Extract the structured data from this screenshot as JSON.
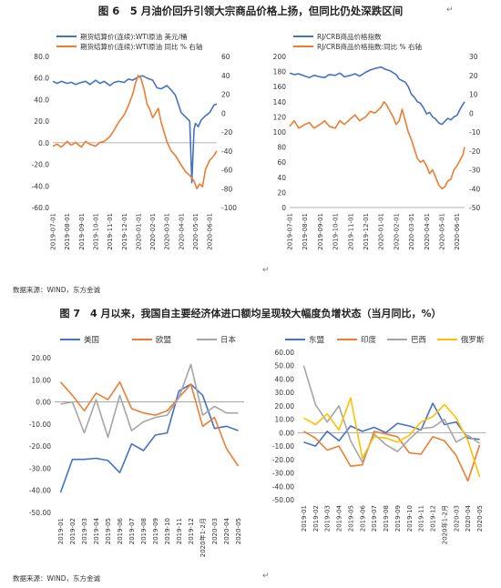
{
  "fig6": {
    "title": "图 6　5 月油价回升引领大宗商品价格上扬，但同比仍处深跌区间"
  },
  "fig7": {
    "title": "图 7　4 月以来，我国自主要经济体进口额均呈现较大幅度负增状态（当月同比，%）"
  },
  "source_left": "数据来源：WIND，东方金诚",
  "source_bottom": "数据来源：WIND，东方金诚",
  "colors": {
    "blue": "#4472C4",
    "orange": "#ED7D31",
    "gray": "#A5A5A5",
    "yellow": "#FFC000"
  },
  "chart_data": [
    {
      "id": "oil",
      "type": "line",
      "x_ticks": [
        "2019-07-01",
        "2019-08-01",
        "2019-09-01",
        "2019-10-01",
        "2019-11-01",
        "2019-12-01",
        "2020-01-01",
        "2020-02-01",
        "2020-03-01",
        "2020-04-01",
        "2020-05-01",
        "2020-06-01"
      ],
      "ylim": [
        -60,
        80
      ],
      "yticks": [
        "80.0",
        "60.0",
        "40.0",
        "20.0",
        "0.0",
        "-20.0",
        "-40.0",
        "-60.0"
      ],
      "y2lim": [
        -100,
        60
      ],
      "y2ticks": [
        "60",
        "40",
        "20",
        "0",
        "-20",
        "-40",
        "-60",
        "-80",
        "-100"
      ],
      "legend_placement": "top",
      "series": [
        {
          "name": "期货结算价(连续):WTI原油 美元/桶",
          "axis": "left",
          "color": "blue",
          "x": [
            0,
            0.3,
            0.6,
            1,
            1.3,
            1.6,
            2,
            2.3,
            2.6,
            3,
            3.3,
            3.6,
            4,
            4.3,
            4.6,
            5,
            5.3,
            5.6,
            6,
            6.3,
            6.6,
            7,
            7.3,
            7.6,
            8,
            8.3,
            8.6,
            9,
            9.3,
            9.6,
            9.75,
            9.9,
            10,
            10.2,
            10.4,
            10.7,
            11,
            11.3,
            11.5
          ],
          "y": [
            57,
            55,
            57,
            55,
            56,
            54,
            56,
            57,
            54,
            58,
            55,
            57,
            53,
            56,
            57,
            56,
            59,
            58,
            61,
            62,
            60,
            58,
            51,
            50,
            53,
            49,
            44,
            28,
            24,
            20,
            -37,
            12,
            18,
            15,
            21,
            25,
            28,
            35,
            36
          ]
        },
        {
          "name": "期货结算价(连续):WTI原油 同比 % 右轴",
          "axis": "right",
          "color": "orange",
          "x": [
            0,
            0.3,
            0.6,
            1,
            1.3,
            1.6,
            2,
            2.3,
            2.6,
            3,
            3.3,
            3.6,
            4,
            4.3,
            4.6,
            5,
            5.3,
            5.6,
            5.8,
            6,
            6.2,
            6.4,
            6.6,
            6.8,
            7,
            7.2,
            7.4,
            7.6,
            7.8,
            8,
            8.3,
            8.6,
            9,
            9.3,
            9.6,
            9.9,
            10.1,
            10.3,
            10.5,
            10.7,
            11,
            11.3,
            11.5
          ],
          "y": [
            -35,
            -33,
            -36,
            -30,
            -34,
            -31,
            -36,
            -30,
            -33,
            -35,
            -31,
            -30,
            -25,
            -18,
            -10,
            -2,
            8,
            20,
            32,
            40,
            36,
            25,
            10,
            4,
            -5,
            0,
            5,
            -10,
            -20,
            -30,
            -40,
            -45,
            -55,
            -62,
            -66,
            -72,
            -80,
            -75,
            -78,
            -60,
            -50,
            -45,
            -40
          ]
        }
      ]
    },
    {
      "id": "crb",
      "type": "line",
      "x_ticks": [
        "2019-07-01",
        "2019-08-01",
        "2019-09-01",
        "2019-10-01",
        "2019-11-01",
        "2019-12-01",
        "2020-01-01",
        "2020-02-01",
        "2020-03-01",
        "2020-04-01",
        "2020-05-01",
        "2020-06-01"
      ],
      "ylim": [
        0,
        200
      ],
      "yticks": [
        "200",
        "180",
        "160",
        "140",
        "120",
        "100",
        "80",
        "60",
        "40",
        "20",
        "0"
      ],
      "y2lim": [
        -50,
        30
      ],
      "y2ticks": [
        "30",
        "20",
        "10",
        "0",
        "-10",
        "-20",
        "-30",
        "-40",
        "-50"
      ],
      "legend_placement": "top",
      "series": [
        {
          "name": "RJ/CRB商品价格指数",
          "axis": "left",
          "color": "blue",
          "x": [
            0,
            0.3,
            0.6,
            1,
            1.3,
            1.6,
            2,
            2.3,
            2.6,
            3,
            3.3,
            3.6,
            4,
            4.3,
            4.6,
            5,
            5.3,
            5.6,
            6,
            6.3,
            6.6,
            7,
            7.2,
            7.4,
            7.6,
            7.8,
            8,
            8.2,
            8.4,
            8.6,
            8.8,
            9,
            9.2,
            9.4,
            9.6,
            9.8,
            10,
            10.2,
            10.4,
            10.6,
            10.8,
            11,
            11.2,
            11.5
          ],
          "y": [
            178,
            176,
            177,
            174,
            172,
            175,
            173,
            172,
            176,
            175,
            178,
            173,
            175,
            177,
            174,
            179,
            182,
            184,
            186,
            183,
            181,
            176,
            170,
            168,
            166,
            160,
            150,
            146,
            140,
            138,
            132,
            124,
            126,
            120,
            117,
            112,
            110,
            114,
            118,
            116,
            120,
            122,
            130,
            140
          ]
        },
        {
          "name": "RJ/CRB商品价格指数:同比 % 右轴",
          "axis": "right",
          "color": "orange",
          "x": [
            0,
            0.3,
            0.6,
            1,
            1.3,
            1.6,
            2,
            2.3,
            2.6,
            3,
            3.3,
            3.6,
            4,
            4.3,
            4.6,
            5,
            5.3,
            5.6,
            6,
            6.2,
            6.4,
            6.6,
            6.8,
            7,
            7.2,
            7.4,
            7.6,
            7.8,
            8,
            8.2,
            8.4,
            8.6,
            8.8,
            9,
            9.2,
            9.4,
            9.6,
            9.8,
            10,
            10.2,
            10.4,
            10.6,
            10.8,
            11,
            11.2,
            11.4,
            11.5
          ],
          "y": [
            -7,
            -4,
            -8,
            -6,
            -5,
            -8,
            -6,
            -4,
            -7,
            -8,
            -4,
            -6,
            -3,
            -1,
            -4,
            -2,
            1,
            0,
            3,
            6,
            4,
            1,
            -2,
            -6,
            -4,
            2,
            -4,
            -10,
            -14,
            -19,
            -24,
            -26,
            -25,
            -28,
            -32,
            -30,
            -34,
            -38,
            -40,
            -39,
            -36,
            -35,
            -30,
            -28,
            -25,
            -22,
            -18
          ]
        }
      ]
    },
    {
      "id": "imports1",
      "type": "line",
      "categories": [
        "2019-01",
        "2019-02",
        "2019-03",
        "2019-04",
        "2019-05",
        "2019-06",
        "2019-07",
        "2019-08",
        "2019-09",
        "2019-10",
        "2019-11",
        "2019-12",
        "2020年1-2月",
        "2020-03",
        "2020-04",
        "2020-05"
      ],
      "ylim": [
        -50,
        20
      ],
      "yticks": [
        "20.00",
        "10.00",
        "0.00",
        "-10.00",
        "-20.00",
        "-30.00",
        "-40.00",
        "-50.00"
      ],
      "legend_placement": "top",
      "series": [
        {
          "name": "美国",
          "color": "blue",
          "values": [
            -41,
            -26,
            -26,
            -25.5,
            -26.5,
            -32,
            -19,
            -22,
            -15,
            -14,
            5,
            8,
            3,
            -12,
            -11,
            -13
          ]
        },
        {
          "name": "欧盟",
          "color": "orange",
          "values": [
            9,
            3,
            -4,
            4,
            1,
            9,
            -3,
            -5,
            -6,
            -4,
            2,
            8,
            -11,
            -7,
            -21,
            -29
          ]
        },
        {
          "name": "日本",
          "color": "gray",
          "values": [
            -1,
            0,
            -14,
            1,
            -16,
            3,
            -13,
            -9,
            -7,
            -6,
            2,
            17,
            -6,
            -2,
            -5,
            -5
          ]
        }
      ]
    },
    {
      "id": "imports2",
      "type": "line",
      "categories": [
        "2019-01",
        "2019-02",
        "2019-03",
        "2019-04",
        "2019-05",
        "2019-06",
        "2019-07",
        "2019-08",
        "2019-09",
        "2019-10",
        "2019-11",
        "2019-12",
        "2020年1-2月",
        "2020-03",
        "2020-04",
        "2020-05"
      ],
      "ylim": [
        -50,
        60
      ],
      "yticks": [
        "60.00",
        "50.00",
        "40.00",
        "30.00",
        "20.00",
        "10.00",
        "0.00",
        "-10.00",
        "-20.00",
        "-30.00",
        "-40.00",
        "-50.00"
      ],
      "legend_placement": "top",
      "series": [
        {
          "name": "东盟",
          "color": "blue",
          "values": [
            -7,
            -10,
            1,
            -6,
            5,
            1,
            4,
            0,
            7,
            5,
            2,
            22,
            6,
            8,
            -4,
            -5
          ]
        },
        {
          "name": "印度",
          "color": "orange",
          "values": [
            1,
            -4,
            -13,
            -10,
            -25,
            -24,
            1,
            -1,
            -3,
            -15,
            -16,
            -3,
            -6,
            -17,
            -36,
            -9
          ]
        },
        {
          "name": "巴西",
          "color": "gray",
          "values": [
            50,
            21,
            8,
            20,
            -6,
            -22,
            -1,
            -9,
            -14,
            -5,
            3,
            4,
            10,
            -7,
            -2,
            -8
          ]
        },
        {
          "name": "俄罗斯",
          "color": "yellow",
          "values": [
            11,
            6,
            14,
            2,
            26,
            -19,
            -3,
            -4,
            -7,
            -2,
            8,
            12,
            21,
            11,
            -6,
            -33
          ]
        }
      ]
    }
  ]
}
